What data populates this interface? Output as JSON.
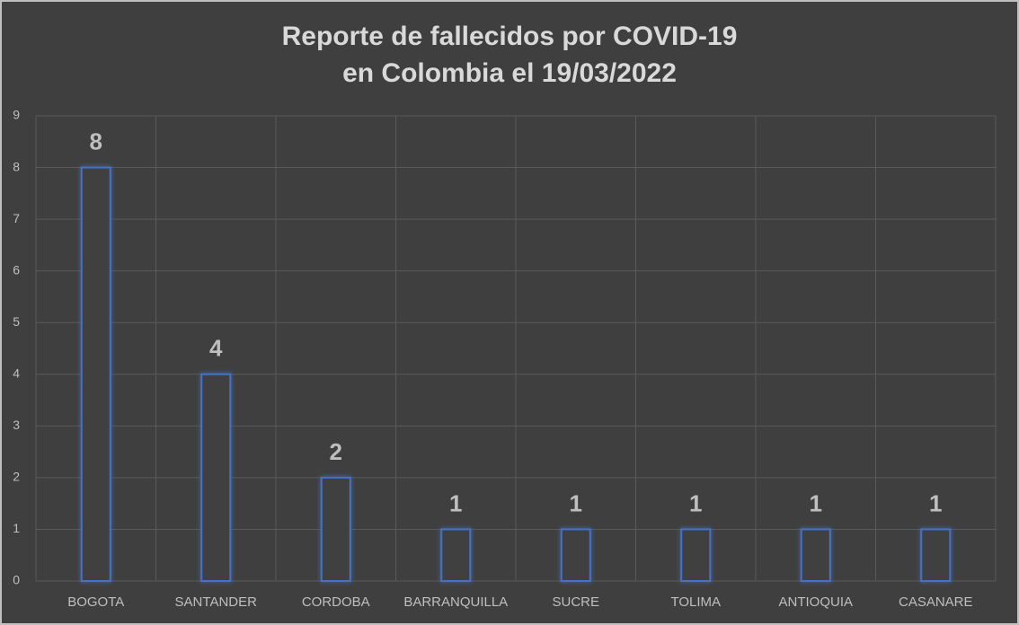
{
  "chart_data": {
    "type": "bar",
    "title": [
      "Reporte de fallecidos por COVID-19",
      "en Colombia el 19/03/2022"
    ],
    "categories": [
      "BOGOTA",
      "SANTANDER",
      "CORDOBA",
      "BARRANQUILLA",
      "SUCRE",
      "TOLIMA",
      "ANTIOQUIA",
      "CASANARE"
    ],
    "values": [
      8,
      4,
      2,
      1,
      1,
      1,
      1,
      1
    ],
    "color": "#4472c4",
    "ylim": [
      0,
      9
    ],
    "yticks": [
      0,
      1,
      2,
      3,
      4,
      5,
      6,
      7,
      8,
      9
    ],
    "grid": true
  }
}
